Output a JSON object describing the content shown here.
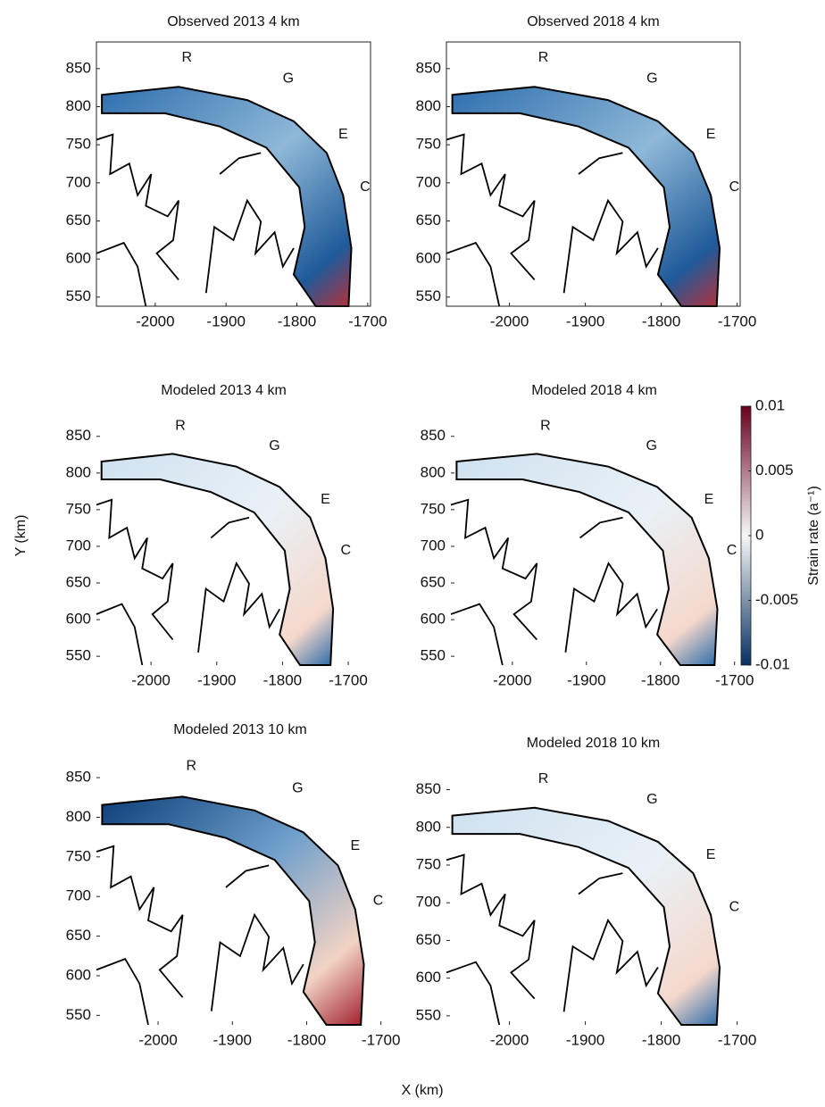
{
  "chart_data": [
    {
      "type": "map",
      "title": "Observed 2013 4 km",
      "xlim": [
        -2083,
        -1696
      ],
      "ylim": [
        538,
        885
      ],
      "xticks": [
        -2000,
        -1900,
        -1800,
        -1700
      ],
      "yticks": [
        550,
        600,
        650,
        700,
        750,
        800,
        850
      ],
      "box": true,
      "annotations": [
        "R",
        "G",
        "E",
        "C"
      ]
    },
    {
      "type": "map",
      "title": "Observed 2018 4 km",
      "xlim": [
        -2083,
        -1696
      ],
      "ylim": [
        538,
        885
      ],
      "xticks": [
        -2000,
        -1900,
        -1800,
        -1700
      ],
      "yticks": [
        550,
        600,
        650,
        700,
        750,
        800,
        850
      ],
      "box": true,
      "annotations": [
        "R",
        "G",
        "E",
        "C"
      ]
    },
    {
      "type": "map",
      "title": "Modeled 2013 4 km",
      "xlim": [
        -2083,
        -1696
      ],
      "ylim": [
        538,
        885
      ],
      "xticks": [
        -2000,
        -1900,
        -1800,
        -1700
      ],
      "yticks": [
        550,
        600,
        650,
        700,
        750,
        800,
        850
      ],
      "box": false,
      "annotations": [
        "R",
        "G",
        "E",
        "C"
      ]
    },
    {
      "type": "map",
      "title": "Modeled 2018 4 km",
      "xlim": [
        -2083,
        -1696
      ],
      "ylim": [
        538,
        885
      ],
      "xticks": [
        -2000,
        -1900,
        -1800,
        -1700
      ],
      "yticks": [
        550,
        600,
        650,
        700,
        750,
        800,
        850
      ],
      "box": false,
      "annotations": [
        "R",
        "G",
        "E",
        "C"
      ]
    },
    {
      "type": "map",
      "title": "Modeled 2013 10 km",
      "xlim": [
        -2083,
        -1696
      ],
      "ylim": [
        538,
        885
      ],
      "xticks": [
        -2000,
        -1900,
        -1800,
        -1700
      ],
      "yticks": [
        550,
        600,
        650,
        700,
        750,
        800,
        850
      ],
      "box": false,
      "annotations": [
        "R",
        "G",
        "E",
        "C"
      ]
    },
    {
      "type": "map",
      "title": "Modeled 2018 10 km",
      "xlim": [
        -2083,
        -1696
      ],
      "ylim": [
        538,
        885
      ],
      "xticks": [
        -2000,
        -1900,
        -1800,
        -1700
      ],
      "yticks": [
        550,
        600,
        650,
        700,
        750,
        800,
        850
      ],
      "box": false,
      "annotations": [
        "R",
        "G",
        "E",
        "C"
      ]
    }
  ],
  "xlabel": "X (km)",
  "ylabel": "Y (km)",
  "colorbar": {
    "label": "Strain rate (a⁻¹)",
    "clim": [
      -0.01,
      0.01
    ],
    "ticks": [
      -0.01,
      -0.005,
      0,
      0.005,
      0.01
    ],
    "colors": [
      "#053061",
      "#f7f7f7",
      "#67001f"
    ]
  }
}
